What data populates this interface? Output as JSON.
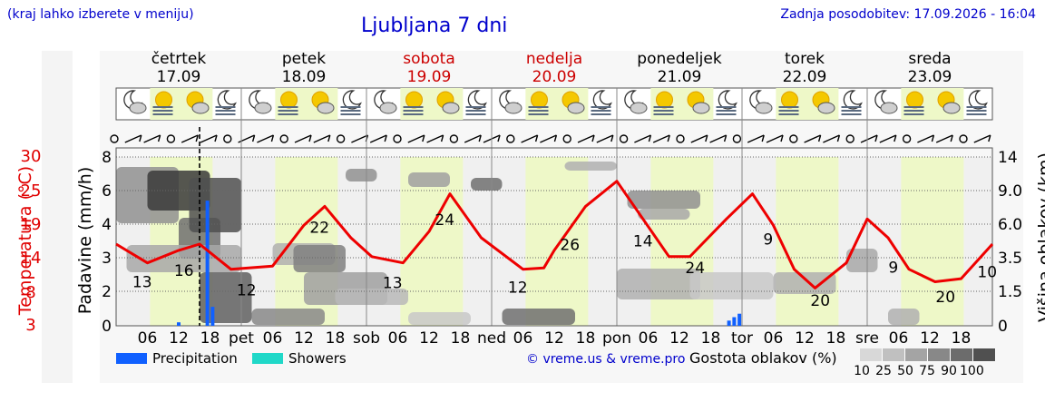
{
  "header": {
    "note": "(kraj lahko izberete v meniju)",
    "title": "Ljubljana 7 dni",
    "updated": "Zadnja posodobitev: 17.09.2026 - 16:04"
  },
  "days": [
    {
      "name": "četrtek",
      "date": "17.09",
      "weekend": false
    },
    {
      "name": "petek",
      "date": "18.09",
      "weekend": false
    },
    {
      "name": "sobota",
      "date": "19.09",
      "weekend": true
    },
    {
      "name": "nedelja",
      "date": "20.09",
      "weekend": true
    },
    {
      "name": "ponedeljek",
      "date": "21.09",
      "weekend": false
    },
    {
      "name": "torek",
      "date": "22.09",
      "weekend": false
    },
    {
      "name": "sreda",
      "date": "23.09",
      "weekend": false
    }
  ],
  "day_abbrev": [
    "pet",
    "sob",
    "ned",
    "pon",
    "tor",
    "sre"
  ],
  "hour_ticks": [
    "06",
    "12",
    "18"
  ],
  "colors": {
    "weekday": "#000000",
    "weekend": "#cc0000",
    "temperature": "#ee0000",
    "precipitation": "#1060ff",
    "showers": "#20d8c8",
    "daylight": "#eef8c8",
    "night": "#f0f0f0"
  },
  "axes": {
    "temperature_label": "Temperatura (°C)",
    "temperature_ticks": [
      "30",
      "25",
      "19",
      "14",
      "8",
      "3"
    ],
    "precip_label": "Padavine (mm/h)",
    "precip_ticks": [
      "0",
      "2",
      "3",
      "4",
      "6",
      "8"
    ],
    "cloud_label": "Višina oblakov (km)",
    "cloud_ticks": [
      "0",
      "1.5",
      "3.5",
      "6.0",
      "9.0",
      "14"
    ]
  },
  "legend": {
    "precipitation": "Precipitation",
    "showers": "Showers",
    "copyright": "© vreme.us & vreme.pro",
    "cloud_density": "Gostota oblakov (%)",
    "density_scale": [
      "10",
      "25",
      "50",
      "75",
      "90",
      "100"
    ],
    "density_colors": [
      "#d8d8d8",
      "#c0c0c0",
      "#a4a4a4",
      "#888888",
      "#6c6c6c",
      "#505050"
    ]
  },
  "chart_data": {
    "type": "line",
    "series_temperature": {
      "x_hours": [
        0,
        6,
        12,
        16,
        22,
        30,
        36,
        40,
        45,
        49,
        55,
        60,
        64,
        70,
        78,
        82,
        84,
        90,
        96,
        101,
        106,
        110,
        117,
        122,
        126,
        130,
        134,
        140,
        144,
        148,
        152,
        157,
        162,
        168
      ],
      "values": [
        16,
        13,
        15,
        16,
        12,
        12.5,
        19,
        22,
        17,
        14,
        13,
        18,
        24,
        17,
        12,
        12.2,
        15,
        22,
        26,
        20,
        14,
        14,
        20,
        24,
        19,
        12,
        9,
        13,
        20,
        17,
        12,
        10,
        10.5,
        16
      ]
    },
    "temperature_labels": [
      {
        "hour": 5,
        "text": "13"
      },
      {
        "hour": 13,
        "text": "16"
      },
      {
        "hour": 25,
        "text": "12"
      },
      {
        "hour": 39,
        "text": "22"
      },
      {
        "hour": 53,
        "text": "13"
      },
      {
        "hour": 63,
        "text": "24"
      },
      {
        "hour": 77,
        "text": "12"
      },
      {
        "hour": 87,
        "text": "26"
      },
      {
        "hour": 101,
        "text": "14"
      },
      {
        "hour": 111,
        "text": "24"
      },
      {
        "hour": 125,
        "text": "9"
      },
      {
        "hour": 135,
        "text": "20"
      },
      {
        "hour": 149,
        "text": "9"
      },
      {
        "hour": 159,
        "text": "20"
      },
      {
        "hour": 167,
        "text": "10"
      }
    ],
    "precipitation_bars": [
      {
        "hour": 12,
        "mm": 0.2
      },
      {
        "hour": 17.5,
        "mm": 5.4
      },
      {
        "hour": 18.5,
        "mm": 1.1
      },
      {
        "hour": 117.5,
        "mm": 0.3
      },
      {
        "hour": 118.5,
        "mm": 0.5
      },
      {
        "hour": 119.5,
        "mm": 0.7
      }
    ],
    "now_hour": 16
  }
}
